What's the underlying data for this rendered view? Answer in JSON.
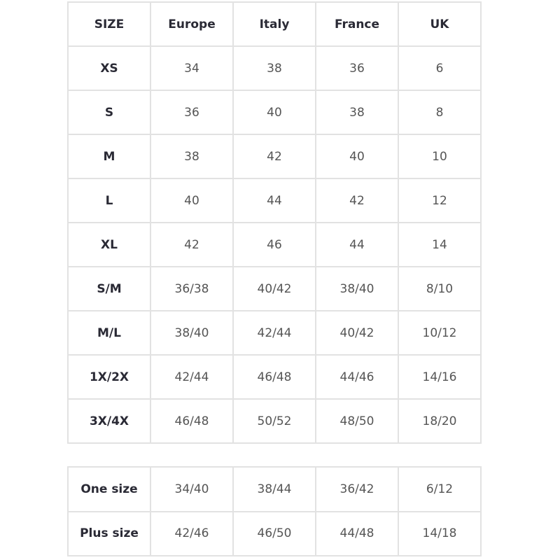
{
  "headers": [
    "SIZE",
    "Europe",
    "Italy",
    "France",
    "UK"
  ],
  "rows": [
    [
      "XS",
      "34",
      "38",
      "36",
      "6"
    ],
    [
      "S",
      "36",
      "40",
      "38",
      "8"
    ],
    [
      "M",
      "38",
      "42",
      "40",
      "10"
    ],
    [
      "L",
      "40",
      "44",
      "42",
      "12"
    ],
    [
      "XL",
      "42",
      "46",
      "44",
      "14"
    ],
    [
      "S/M",
      "36/38",
      "40/42",
      "38/40",
      "8/10"
    ],
    [
      "M/L",
      "38/40",
      "42/44",
      "40/42",
      "10/12"
    ],
    [
      "1X/2X",
      "42/44",
      "46/48",
      "44/46",
      "14/16"
    ],
    [
      "3X/4X",
      "46/48",
      "50/52",
      "48/50",
      "18/20"
    ]
  ],
  "extra_rows": [
    [
      "One size",
      "34/40",
      "38/44",
      "36/42",
      "6/12"
    ],
    [
      "Plus size",
      "42/46",
      "46/50",
      "44/48",
      "14/18"
    ]
  ]
}
